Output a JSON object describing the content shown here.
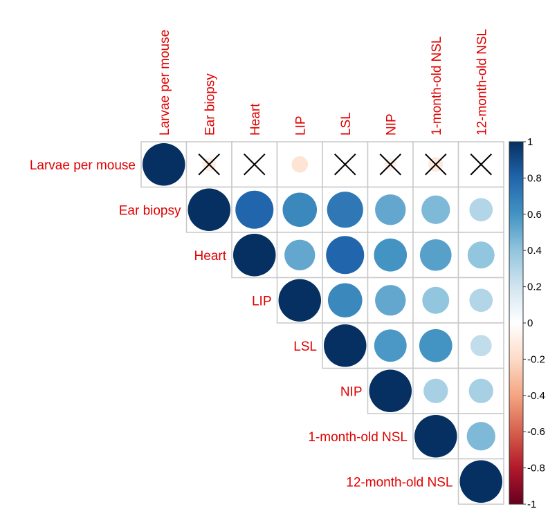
{
  "chart_data": {
    "type": "heatmap",
    "style": "corrplot-upper-circles",
    "variables": [
      "Larvae per mouse",
      "Ear biopsy",
      "Heart",
      "LIP",
      "LSL",
      "NIP",
      "1-month-old NSL",
      "12-month-old NSL"
    ],
    "correlations": [
      [
        1.0,
        -0.1,
        0.0,
        -0.15,
        0.0,
        -0.08,
        -0.12,
        0.0
      ],
      [
        null,
        1.0,
        0.8,
        0.65,
        0.72,
        0.52,
        0.45,
        0.3
      ],
      [
        null,
        null,
        1.0,
        0.52,
        0.8,
        0.6,
        0.55,
        0.4
      ],
      [
        null,
        null,
        null,
        1.0,
        0.65,
        0.52,
        0.4,
        0.3
      ],
      [
        null,
        null,
        null,
        null,
        1.0,
        0.58,
        0.6,
        0.25
      ],
      [
        null,
        null,
        null,
        null,
        null,
        1.0,
        0.33,
        0.33
      ],
      [
        null,
        null,
        null,
        null,
        null,
        null,
        1.0,
        0.45
      ],
      [
        null,
        null,
        null,
        null,
        null,
        null,
        null,
        1.0
      ]
    ],
    "insignificant": [
      [
        0,
        1
      ],
      [
        0,
        2
      ],
      [
        0,
        4
      ],
      [
        0,
        5
      ],
      [
        0,
        6
      ],
      [
        0,
        7
      ]
    ],
    "colorbar": {
      "range": [
        -1,
        1
      ],
      "ticks": [
        "1",
        "0.8",
        "0.6",
        "0.4",
        "0.2",
        "0",
        "-0.2",
        "-0.4",
        "-0.6",
        "-0.8",
        "-1"
      ],
      "colors": [
        "#67001F",
        "#B2182B",
        "#D6604D",
        "#F4A582",
        "#FDDBC7",
        "#FFFFFF",
        "#D1E5F0",
        "#92C5DE",
        "#4393C3",
        "#2166AC",
        "#053061"
      ]
    },
    "label_color": "#e00000"
  }
}
